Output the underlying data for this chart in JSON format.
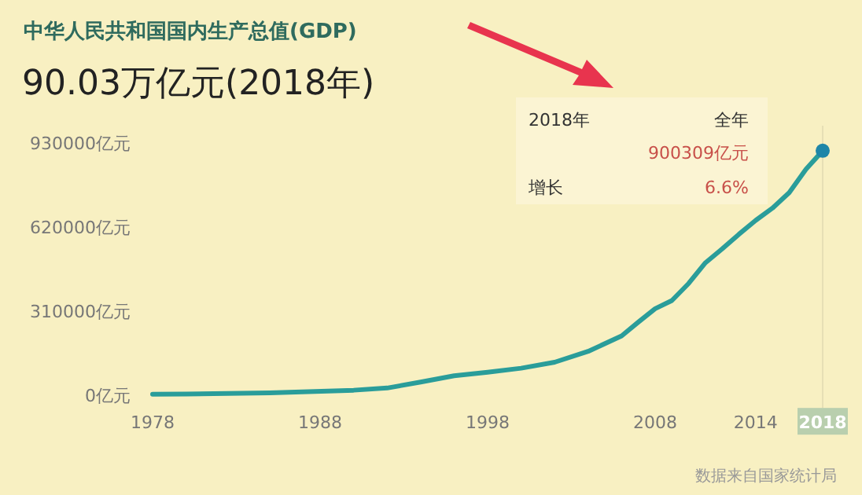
{
  "chart_data": {
    "type": "line",
    "title": "中华人民共和国国内生产总值(GDP)",
    "subtitle": "90.03万亿元(2018年)",
    "x": [
      1978,
      1980,
      1985,
      1990,
      1992,
      1994,
      1996,
      1998,
      2000,
      2002,
      2004,
      2006,
      2007,
      2008,
      2009,
      2010,
      2011,
      2012,
      2013,
      2014,
      2015,
      2016,
      2017,
      2018
    ],
    "series": [
      {
        "color": "#2a9d9a",
        "values": [
          4000,
          5000,
          9000,
          19000,
          27000,
          49000,
          72000,
          85000,
          100000,
          122000,
          162000,
          219000,
          270000,
          319000,
          349000,
          412000,
          488000,
          539000,
          593000,
          644000,
          689000,
          746000,
          832000,
          900309
        ]
      },
      {
        "type": "scatter",
        "color": "#1f86a8",
        "x": [
          2018
        ],
        "values": [
          900309
        ]
      }
    ],
    "xlim": [
      1978,
      2018
    ],
    "xticks": [
      1978,
      1988,
      1998,
      2008,
      2014,
      2018
    ],
    "ylim": [
      0,
      930000
    ],
    "yticks": [
      {
        "value": 0,
        "label": "0亿元"
      },
      {
        "value": 310000,
        "label": "310000亿元"
      },
      {
        "value": 620000,
        "label": "620000亿元"
      },
      {
        "value": 930000,
        "label": "930000亿元"
      }
    ],
    "ref_lines": [
      {
        "axis": "x",
        "value": 2018,
        "color": "#e6dfb5"
      }
    ],
    "annotations": [
      "2018年",
      "全年",
      "900309亿元",
      "增长",
      "6.6%",
      "数据来自国家统计局"
    ],
    "grid": false
  }
}
